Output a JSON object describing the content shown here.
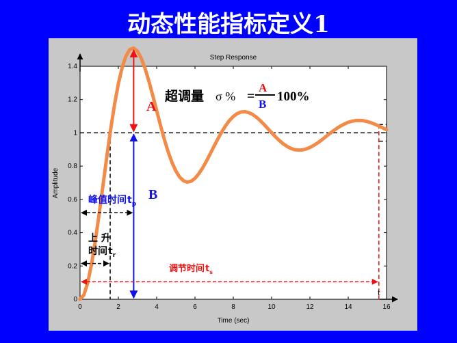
{
  "slide": {
    "title": "动态性能指标定义1"
  },
  "figure": {
    "background": "#c8c8c8",
    "slide_background": "#0000ff"
  },
  "chart_data": {
    "type": "line",
    "title": "Step Response",
    "xlabel": "Time (sec)",
    "ylabel": "Amplitude",
    "xlim": [
      0,
      16
    ],
    "ylim": [
      0,
      1.4
    ],
    "xticks": [
      0,
      2,
      4,
      6,
      8,
      10,
      12,
      14,
      16
    ],
    "yticks": [
      0,
      0.2,
      0.4,
      0.6,
      0.8,
      1,
      1.2,
      1.4
    ],
    "xtick_labels": [
      "0",
      "2",
      "4",
      "6",
      "8",
      "10",
      "12",
      "14",
      "16"
    ],
    "ytick_labels": [
      "0",
      "0.2",
      "0.4",
      "0.6",
      "0.8",
      "1",
      "1.2",
      "1.4"
    ],
    "grid": false,
    "series": [
      {
        "color": "#f28a48",
        "x": [
          0,
          0.2,
          0.4,
          0.6,
          0.8,
          1,
          1.2,
          1.4,
          1.6,
          1.8,
          2,
          2.2,
          2.4,
          2.6,
          2.8,
          3,
          3.2,
          3.4,
          3.6,
          3.8,
          4,
          4.2,
          4.4,
          4.6,
          4.8,
          5,
          5.2,
          5.4,
          5.6,
          5.8,
          6,
          6.2,
          6.4,
          6.6,
          6.8,
          7,
          7.2,
          7.4,
          7.6,
          7.8,
          8,
          8.2,
          8.4,
          8.6,
          8.8,
          9,
          9.2,
          9.4,
          9.6,
          9.8,
          10,
          10.2,
          10.4,
          10.6,
          10.8,
          11,
          11.2,
          11.4,
          11.6,
          11.8,
          12,
          12.2,
          12.4,
          12.6,
          12.8,
          13,
          13.2,
          13.4,
          13.6,
          13.8,
          14,
          14.2,
          14.4,
          14.6,
          14.8,
          15,
          15.2,
          15.4,
          15.6,
          15.8,
          16
        ],
        "y": [
          0,
          0.0259,
          0.0988,
          0.2107,
          0.3525,
          0.5143,
          0.6861,
          0.8584,
          1.0221,
          1.1697,
          1.2949,
          1.3934,
          1.4624,
          1.5008,
          1.5094,
          1.4904,
          1.4474,
          1.385,
          1.3084,
          1.2228,
          1.1334,
          1.0448,
          0.9612,
          0.886,
          0.822,
          0.771,
          0.7342,
          0.712,
          0.704,
          0.7094,
          0.7267,
          0.7541,
          0.7895,
          0.8305,
          0.8749,
          0.9204,
          0.9648,
          1.0062,
          1.0431,
          1.0741,
          1.0984,
          1.1153,
          1.1248,
          1.1268,
          1.122,
          1.1109,
          1.0946,
          1.0741,
          1.0509,
          1.026,
          1.0009,
          0.9766,
          0.9543,
          0.9348,
          0.9188,
          0.9069,
          0.8993,
          0.8962,
          0.8975,
          0.903,
          0.9122,
          0.9246,
          0.9395,
          0.9563,
          0.9741,
          0.9922,
          1.0098,
          1.0263,
          1.041,
          1.0535,
          1.0633,
          1.0701,
          1.0739,
          1.0746,
          1.0724,
          1.0675,
          1.0604,
          1.0514,
          1.0411,
          1.03,
          1.0187
        ]
      }
    ],
    "annotations": {
      "overshoot_label": "超调量",
      "sigma": "σ %",
      "equals": "=",
      "numerator": "A",
      "denominator": "B",
      "times100": "100%",
      "A": "A",
      "B": "B",
      "peak_time": "峰值时间",
      "peak_sub": "p",
      "rise_line1": "上  升",
      "rise_line2": "时间",
      "rise_sub": "r",
      "settling_time": "调节时间",
      "settling_sub": "s",
      "t_axis": "t"
    },
    "colors": {
      "curve": "#f28a48",
      "red": "#ee1111",
      "blue": "#1111ee",
      "black": "#000000"
    }
  }
}
